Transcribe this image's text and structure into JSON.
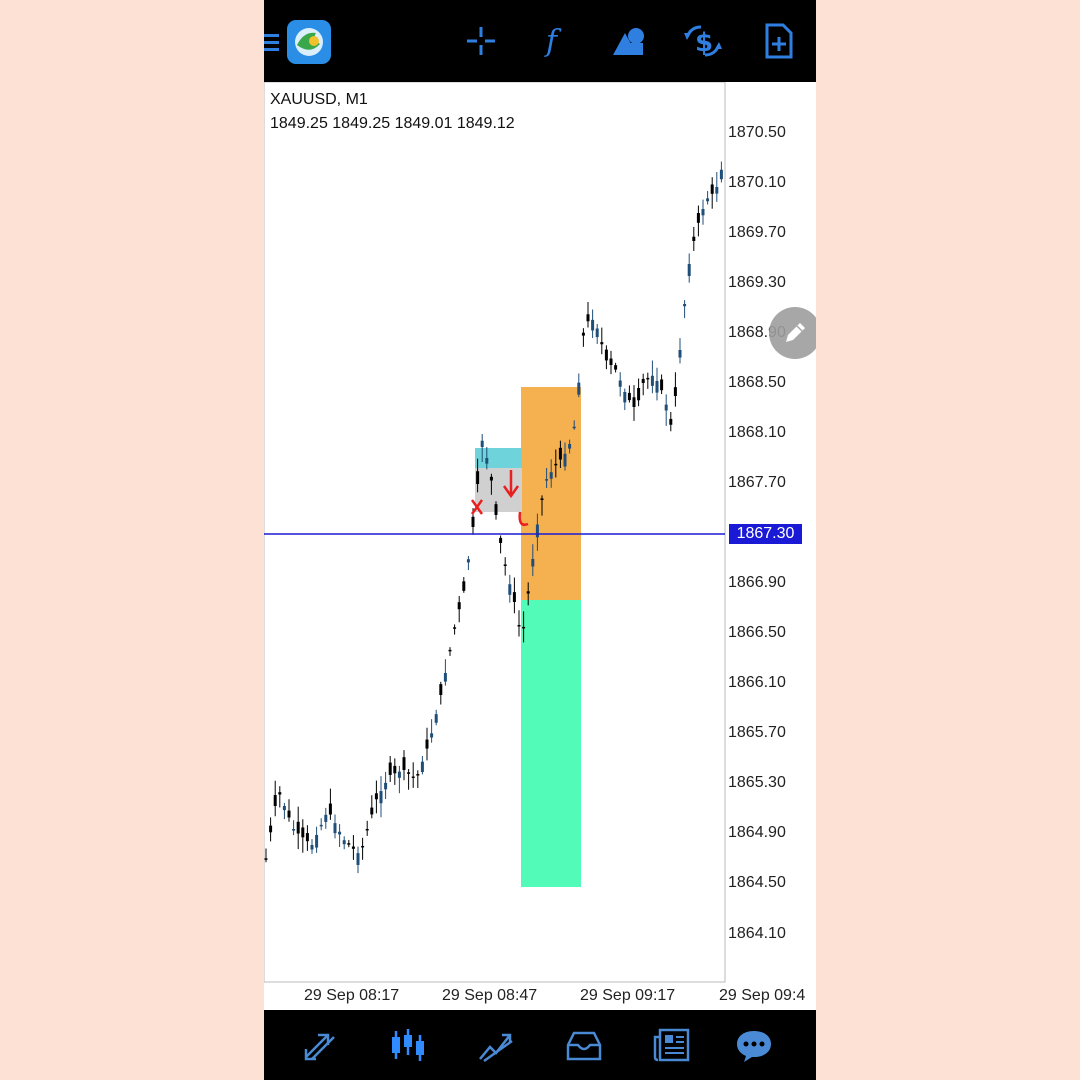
{
  "toolbar": {
    "menu_icon": "hamburger-icon",
    "logo_icon": "metatrader-logo-icon",
    "crosshair_icon": "crosshair-icon",
    "indicators_icon": "function-icon",
    "objects_icon": "shapes-icon",
    "trade_icon": "dollar-refresh-icon",
    "new_order_icon": "new-document-icon"
  },
  "chart": {
    "symbol": "XAUUSD, M1",
    "ohlc": "1849.25 1849.25 1849.01 1849.12",
    "current_price": "1867.30",
    "price_axis": [
      "1870.50",
      "1870.10",
      "1869.70",
      "1869.30",
      "1868.90",
      "1868.50",
      "1868.10",
      "1867.70",
      "1866.90",
      "1866.50",
      "1866.10",
      "1865.70",
      "1865.30",
      "1864.90",
      "1864.50",
      "1864.10"
    ],
    "time_axis": [
      "29 Sep 08:17",
      "29 Sep 08:47",
      "29 Sep 09:17",
      "29 Sep 09:4"
    ],
    "colors": {
      "bull": "#1f4e79",
      "bear": "#000000",
      "stop_zone": "#f5b04f",
      "profit_zone": "#52fbb8",
      "price_line": "#1a1ad6"
    }
  },
  "bottom_nav": {
    "quotes_icon": "quotes-arrows-icon",
    "chart_icon": "candlestick-chart-icon",
    "trade_icon": "trade-trend-icon",
    "history_icon": "inbox-history-icon",
    "news_icon": "news-icon",
    "chat_icon": "chat-bubble-icon"
  }
}
